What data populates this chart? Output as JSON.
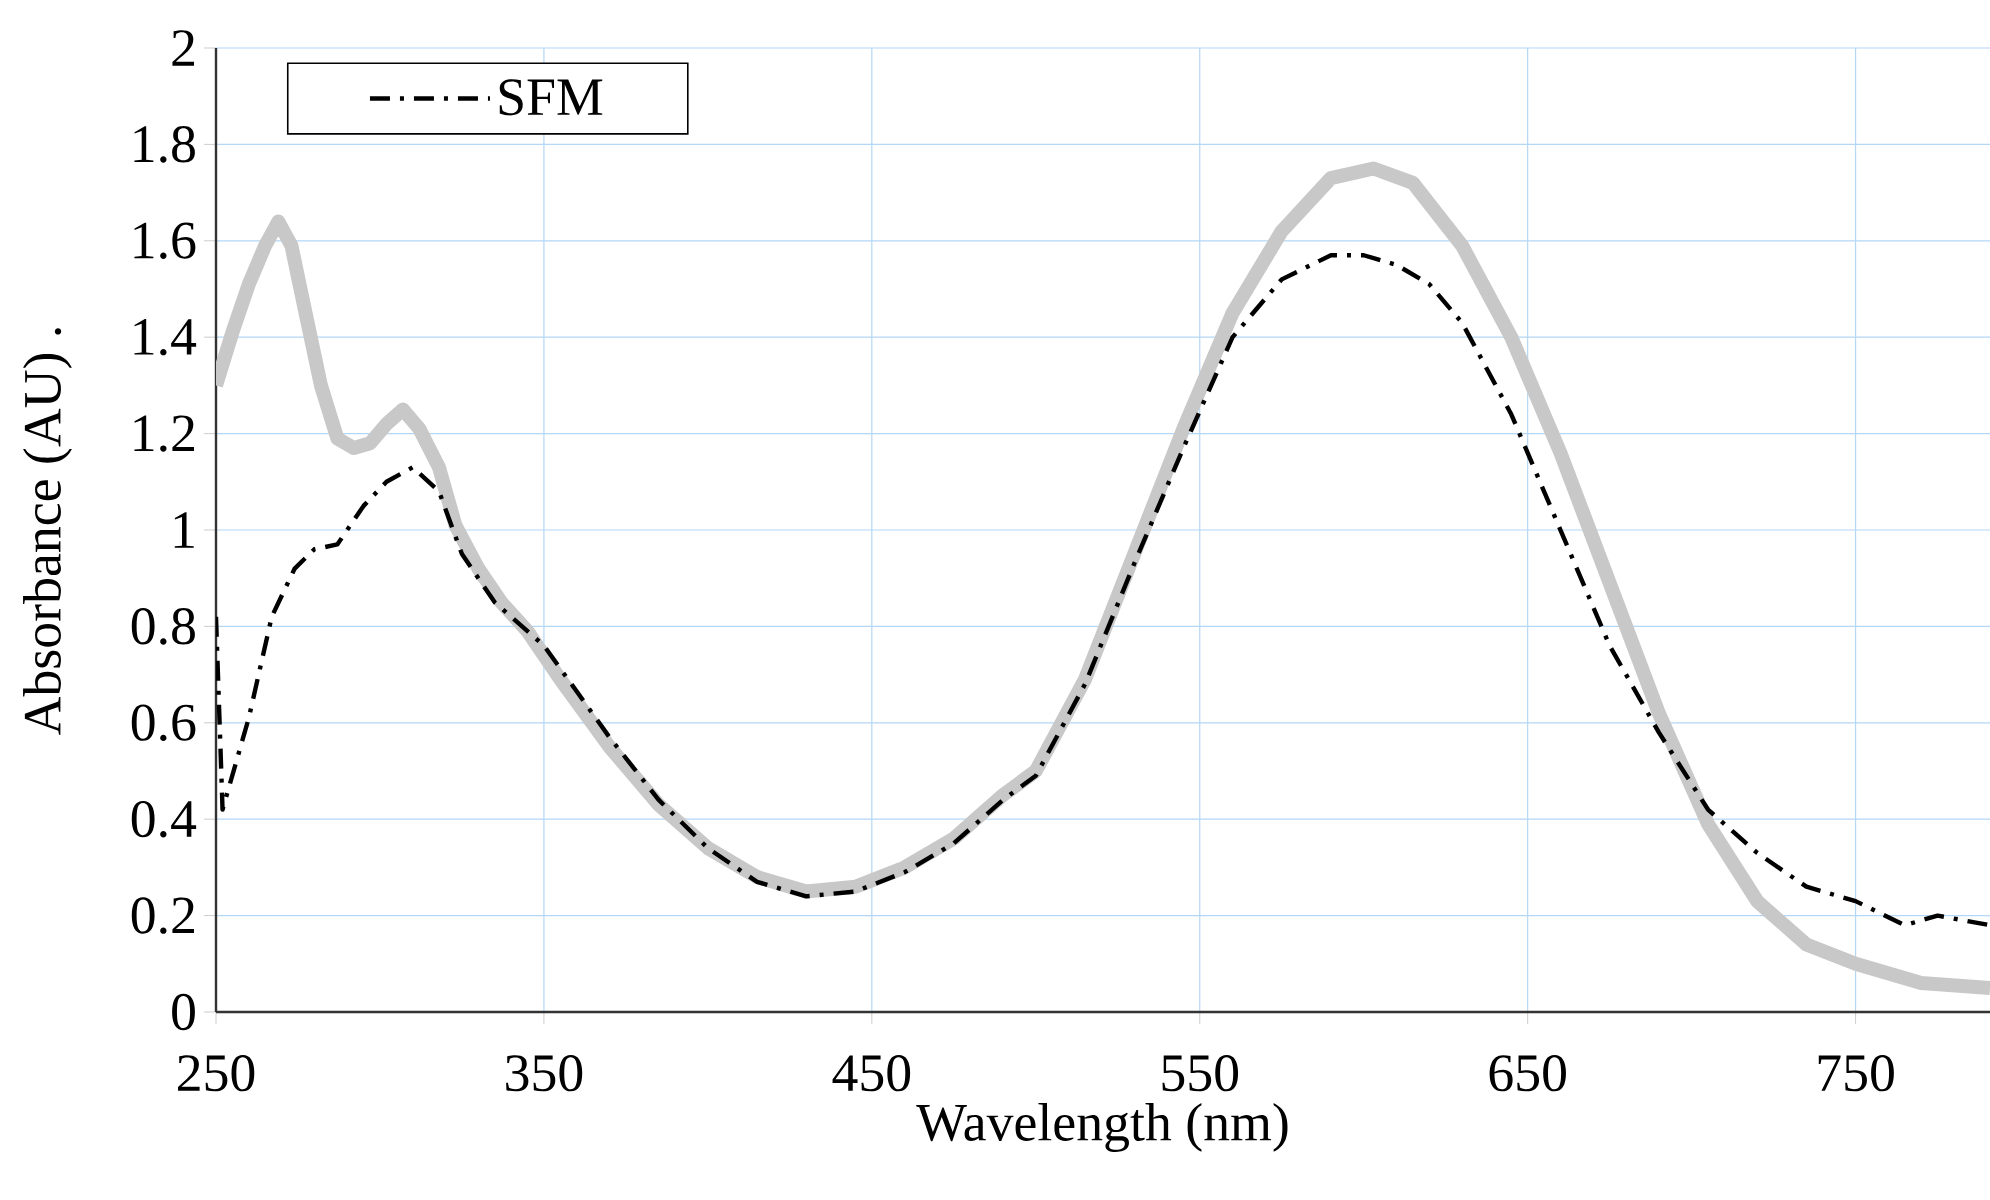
{
  "chart_data": {
    "type": "line",
    "xlabel": "Wavelength (nm)",
    "ylabel": "Absorbance (AU)  .",
    "xlim": [
      250,
      791
    ],
    "ylim": [
      0,
      2
    ],
    "xticks": [
      250,
      350,
      450,
      550,
      650,
      750
    ],
    "yticks": [
      0,
      0.2,
      0.4,
      0.6,
      0.8,
      1,
      1.2,
      1.4,
      1.6,
      1.8,
      2
    ],
    "grid": true,
    "legend": "top left",
    "series": [
      {
        "color": "#c8c8c8",
        "line_style": "solid",
        "x": [
          250,
          255,
          260,
          265,
          269,
          273,
          277,
          282,
          287,
          292,
          297,
          302,
          307,
          312,
          318,
          323,
          330,
          337,
          345,
          355,
          370,
          385,
          400,
          415,
          430,
          445,
          460,
          475,
          490,
          500,
          515,
          530,
          545,
          560,
          575,
          590,
          603,
          615,
          630,
          645,
          660,
          675,
          690,
          705,
          720,
          735,
          750,
          770,
          791
        ],
        "values": [
          1.3,
          1.41,
          1.51,
          1.59,
          1.64,
          1.59,
          1.46,
          1.3,
          1.19,
          1.17,
          1.18,
          1.22,
          1.25,
          1.21,
          1.13,
          1.01,
          0.92,
          0.85,
          0.79,
          0.69,
          0.55,
          0.43,
          0.34,
          0.28,
          0.25,
          0.26,
          0.3,
          0.36,
          0.45,
          0.5,
          0.69,
          0.95,
          1.21,
          1.45,
          1.62,
          1.73,
          1.75,
          1.72,
          1.59,
          1.4,
          1.16,
          0.89,
          0.62,
          0.39,
          0.23,
          0.14,
          0.1,
          0.06,
          0.05
        ]
      },
      {
        "name": "SFM",
        "color": "#000000",
        "line_style": "dashdot",
        "x": [
          250,
          252,
          260,
          267,
          274,
          280,
          287,
          295,
          302,
          310,
          318,
          325,
          335,
          350,
          370,
          385,
          400,
          415,
          430,
          445,
          460,
          475,
          490,
          500,
          515,
          530,
          545,
          560,
          575,
          590,
          600,
          610,
          620,
          630,
          645,
          660,
          675,
          690,
          705,
          720,
          735,
          750,
          765,
          770,
          775,
          791
        ],
        "values": [
          0.82,
          0.42,
          0.61,
          0.82,
          0.92,
          0.96,
          0.97,
          1.05,
          1.1,
          1.13,
          1.08,
          0.95,
          0.85,
          0.76,
          0.57,
          0.44,
          0.34,
          0.27,
          0.24,
          0.25,
          0.29,
          0.35,
          0.44,
          0.49,
          0.68,
          0.93,
          1.17,
          1.4,
          1.52,
          1.57,
          1.57,
          1.55,
          1.51,
          1.43,
          1.24,
          1.0,
          0.76,
          0.58,
          0.42,
          0.33,
          0.26,
          0.23,
          0.18,
          0.19,
          0.2,
          0.18
        ]
      }
    ]
  }
}
